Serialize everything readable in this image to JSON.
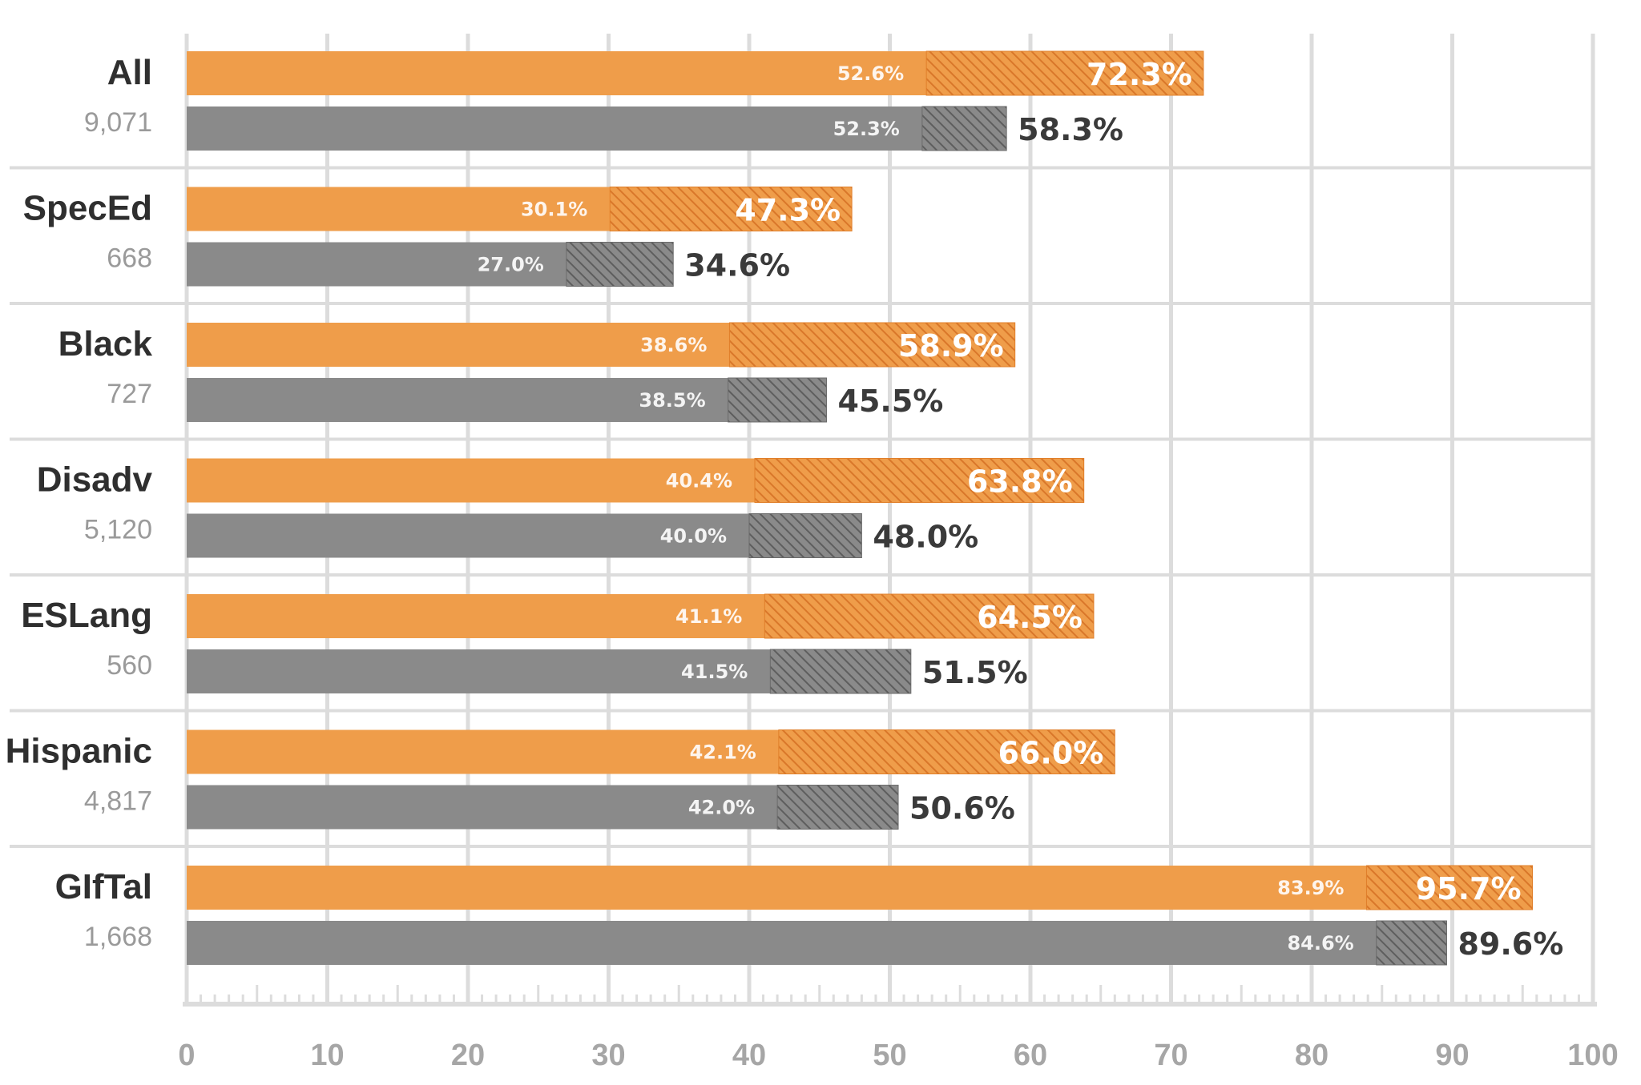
{
  "chart_data": {
    "type": "bar",
    "orientation": "horizontal",
    "xlim": [
      0,
      100
    ],
    "ticks": [
      0,
      10,
      20,
      30,
      40,
      50,
      60,
      70,
      80,
      90,
      100
    ],
    "tick_labels": [
      "0",
      "10",
      "20",
      "30",
      "40",
      "50",
      "60",
      "70",
      "80",
      "90",
      "100"
    ],
    "grid": true,
    "colors": {
      "orange": "#EF9D4A",
      "orange_hatch": "#E07F2A",
      "gray": "#8A8A8A",
      "gray_hatch": "#6B6B6B",
      "gridline": "#dcdcdc"
    },
    "series": [
      {
        "name": "orange",
        "color": "#EF9D4A"
      },
      {
        "name": "gray",
        "color": "#8A8A8A"
      }
    ],
    "groups": [
      {
        "label": "All",
        "count": "9,071",
        "orange": {
          "base": 52.6,
          "total": 72.3,
          "base_label": "52.6%",
          "total_label": "72.3%"
        },
        "gray": {
          "base": 52.3,
          "total": 58.3,
          "base_label": "52.3%",
          "total_label": "58.3%"
        }
      },
      {
        "label": "SpecEd",
        "count": "668",
        "orange": {
          "base": 30.1,
          "total": 47.3,
          "base_label": "30.1%",
          "total_label": "47.3%"
        },
        "gray": {
          "base": 27.0,
          "total": 34.6,
          "base_label": "27.0%",
          "total_label": "34.6%"
        }
      },
      {
        "label": "Black",
        "count": "727",
        "orange": {
          "base": 38.6,
          "total": 58.9,
          "base_label": "38.6%",
          "total_label": "58.9%"
        },
        "gray": {
          "base": 38.5,
          "total": 45.5,
          "base_label": "38.5%",
          "total_label": "45.5%"
        }
      },
      {
        "label": "Disadv",
        "count": "5,120",
        "orange": {
          "base": 40.4,
          "total": 63.8,
          "base_label": "40.4%",
          "total_label": "63.8%"
        },
        "gray": {
          "base": 40.0,
          "total": 48.0,
          "base_label": "40.0%",
          "total_label": "48.0%"
        }
      },
      {
        "label": "ESLang",
        "count": "560",
        "orange": {
          "base": 41.1,
          "total": 64.5,
          "base_label": "41.1%",
          "total_label": "64.5%"
        },
        "gray": {
          "base": 41.5,
          "total": 51.5,
          "base_label": "41.5%",
          "total_label": "51.5%"
        }
      },
      {
        "label": "Hispanic",
        "count": "4,817",
        "orange": {
          "base": 42.1,
          "total": 66.0,
          "base_label": "42.1%",
          "total_label": "66.0%"
        },
        "gray": {
          "base": 42.0,
          "total": 50.6,
          "base_label": "42.0%",
          "total_label": "50.6%"
        }
      },
      {
        "label": "GIfTal",
        "count": "1,668",
        "orange": {
          "base": 83.9,
          "total": 95.7,
          "base_label": "83.9%",
          "total_label": "95.7%"
        },
        "gray": {
          "base": 84.6,
          "total": 89.6,
          "base_label": "84.6%",
          "total_label": "89.6%"
        }
      }
    ]
  }
}
